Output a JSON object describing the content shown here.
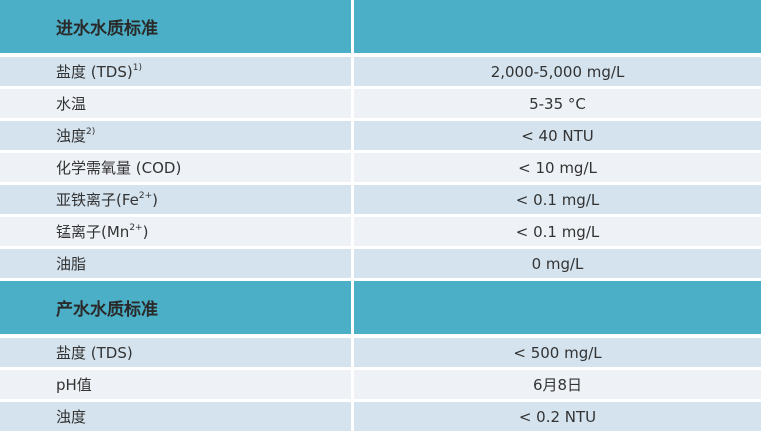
{
  "sections": [
    {
      "title": "进水水质标准",
      "rows": [
        [
          [
            {
              "text": "盐度 (TDS) "
            },
            {
              "text": "1)",
              "sup": true
            }
          ],
          "2,000-5,000 mg/L"
        ],
        [
          "水温",
          "5-35 °C"
        ],
        [
          [
            {
              "text": "浊度 "
            },
            {
              "text": "2)",
              "sup": true
            }
          ],
          "< 40 NTU"
        ],
        [
          "化学需氧量 (COD)",
          "< 10 mg/L"
        ],
        [
          [
            {
              "text": "亚铁离子(Fe"
            },
            {
              "text": "2+",
              "sup": true
            },
            {
              "text": ")"
            }
          ],
          "< 0.1 mg/L"
        ],
        [
          [
            {
              "text": "锰离子(Mn"
            },
            {
              "text": "2+",
              "sup": true
            },
            {
              "text": ")"
            }
          ],
          "< 0.1 mg/L"
        ],
        [
          "油脂",
          "0 mg/L"
        ]
      ]
    },
    {
      "title": "产水水质标准",
      "rows": [
        [
          "盐度 (TDS)",
          "< 500 mg/L"
        ],
        [
          "pH值",
          "6月8日"
        ],
        [
          "浊度",
          "< 0.2 NTU"
        ]
      ]
    }
  ]
}
